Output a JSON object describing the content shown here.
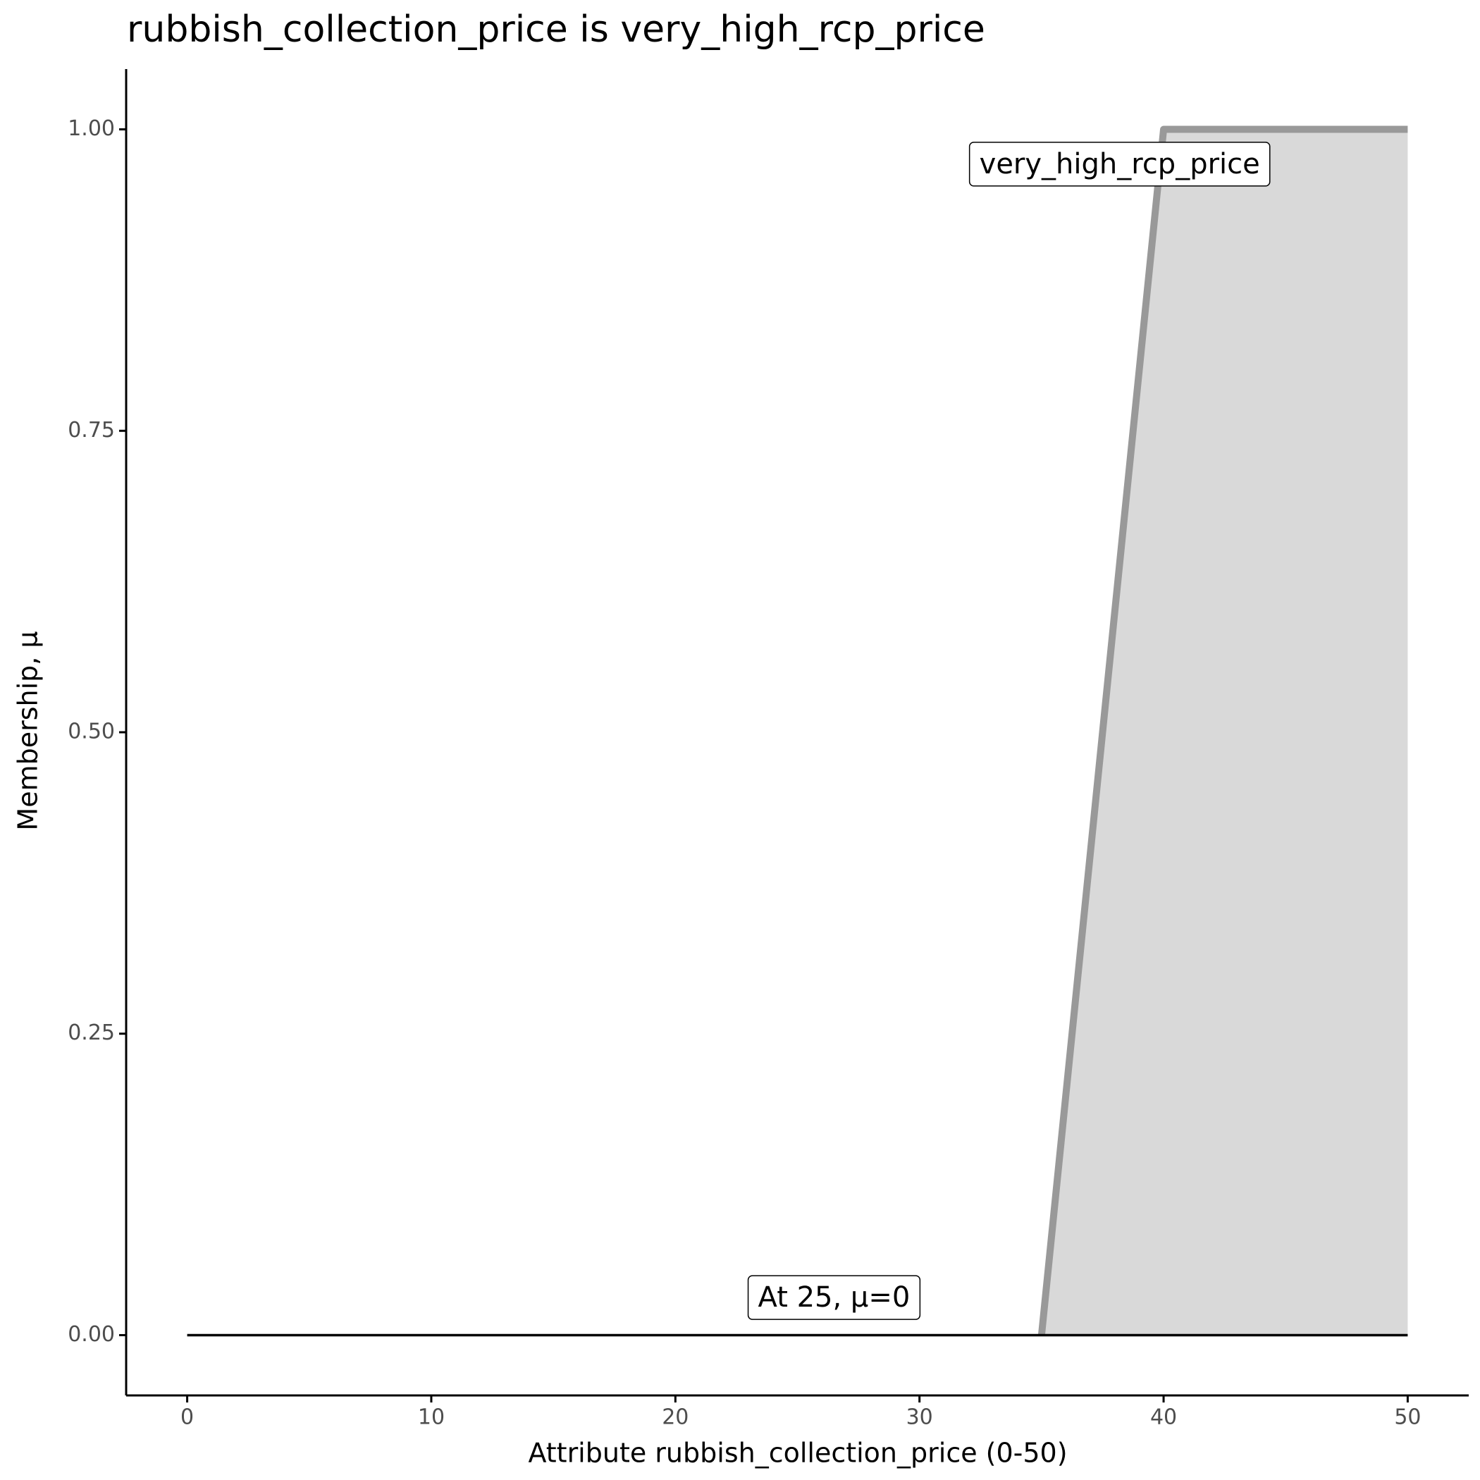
{
  "chart_data": {
    "type": "line",
    "title": "rubbish_collection_price is very_high_rcp_price",
    "x_label": "Attribute rubbish_collection_price (0-50)",
    "y_label": "Membership, μ",
    "xlim": [
      -2.5,
      52.5
    ],
    "ylim": [
      -0.05,
      1.05
    ],
    "xticks": [
      0,
      10,
      20,
      30,
      40,
      50
    ],
    "yticks": [
      {
        "value": 0,
        "label": "0.00"
      },
      {
        "value": 0.25,
        "label": "0.25"
      },
      {
        "value": 0.5,
        "label": "0.50"
      },
      {
        "value": 0.75,
        "label": "0.75"
      },
      {
        "value": 1,
        "label": "1.00"
      }
    ],
    "series": [
      {
        "color": "#999999",
        "fill": "#d9d9d9",
        "x": [
          35,
          40,
          50
        ],
        "values": [
          0,
          1,
          1
        ]
      },
      {
        "color": "#000000",
        "x": [
          0,
          50
        ],
        "values": [
          0,
          0
        ]
      }
    ],
    "annotations": [
      {
        "text": "very_high_rcp_price",
        "x": 38.2,
        "y": 0.97
      },
      {
        "text": "At 25, μ=0",
        "x": 26.5,
        "y": 0.03
      }
    ]
  }
}
